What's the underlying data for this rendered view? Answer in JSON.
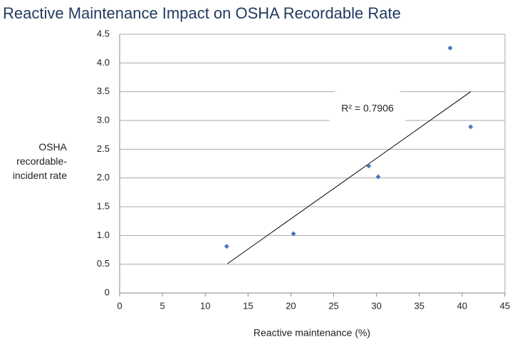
{
  "chart_data": {
    "type": "scatter",
    "title": "Reactive Maintenance Impact on OSHA Recordable Rate",
    "x_label": "Reactive maintenance (%)",
    "y_label": "OSHA recordable-incident rate",
    "annotation": "R² = 0.7906",
    "x": [
      12.5,
      20.3,
      29.1,
      30.2,
      38.6,
      41.0
    ],
    "y": [
      0.81,
      1.03,
      2.21,
      2.02,
      4.26,
      2.89
    ],
    "color": "#4a78b5",
    "trendline": {
      "x": [
        12.6,
        41.0
      ],
      "y": [
        0.51,
        3.5
      ],
      "color": "#000000"
    },
    "xlim": [
      0,
      45
    ],
    "xticks": [
      0,
      5,
      10,
      15,
      20,
      25,
      30,
      35,
      40,
      45
    ],
    "ylim": [
      0,
      4.5
    ],
    "yticks": [
      0,
      0.5,
      {
        "value": 1,
        "label": "1.0"
      },
      1.5,
      {
        "value": 2,
        "label": "2.0"
      },
      2.5,
      {
        "value": 3,
        "label": "3.0"
      },
      3.5,
      {
        "value": 4,
        "label": "4.0"
      },
      4.5
    ],
    "grid": true
  }
}
